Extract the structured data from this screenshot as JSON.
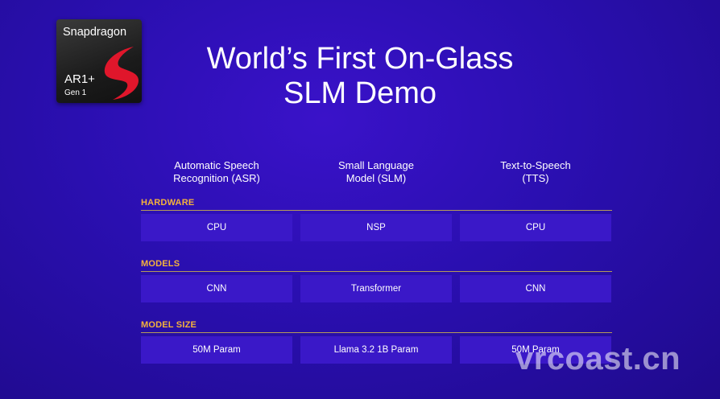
{
  "chip": {
    "brand": "Snapdragon",
    "model": "AR1+",
    "gen": "Gen 1"
  },
  "title": {
    "line1": "World’s First On-Glass",
    "line2": "SLM Demo"
  },
  "columns": [
    {
      "line1": "Automatic Speech",
      "line2": "Recognition (ASR)"
    },
    {
      "line1": "Small Language",
      "line2": "Model (SLM)"
    },
    {
      "line1": "Text-to-Speech",
      "line2": "(TTS)"
    }
  ],
  "sections": [
    {
      "label": "HARDWARE",
      "cells": [
        "CPU",
        "NSP",
        "CPU"
      ]
    },
    {
      "label": "MODELS",
      "cells": [
        "CNN",
        "Transformer",
        "CNN"
      ]
    },
    {
      "label": "MODEL SIZE",
      "cells": [
        "50M Param",
        "Llama 3.2 1B Param",
        "50M Param"
      ]
    }
  ],
  "watermark": "vrcoast.cn",
  "colors": {
    "accent": "#f4b23c",
    "cell": "#3a18c8",
    "logo": "#e0162b"
  }
}
